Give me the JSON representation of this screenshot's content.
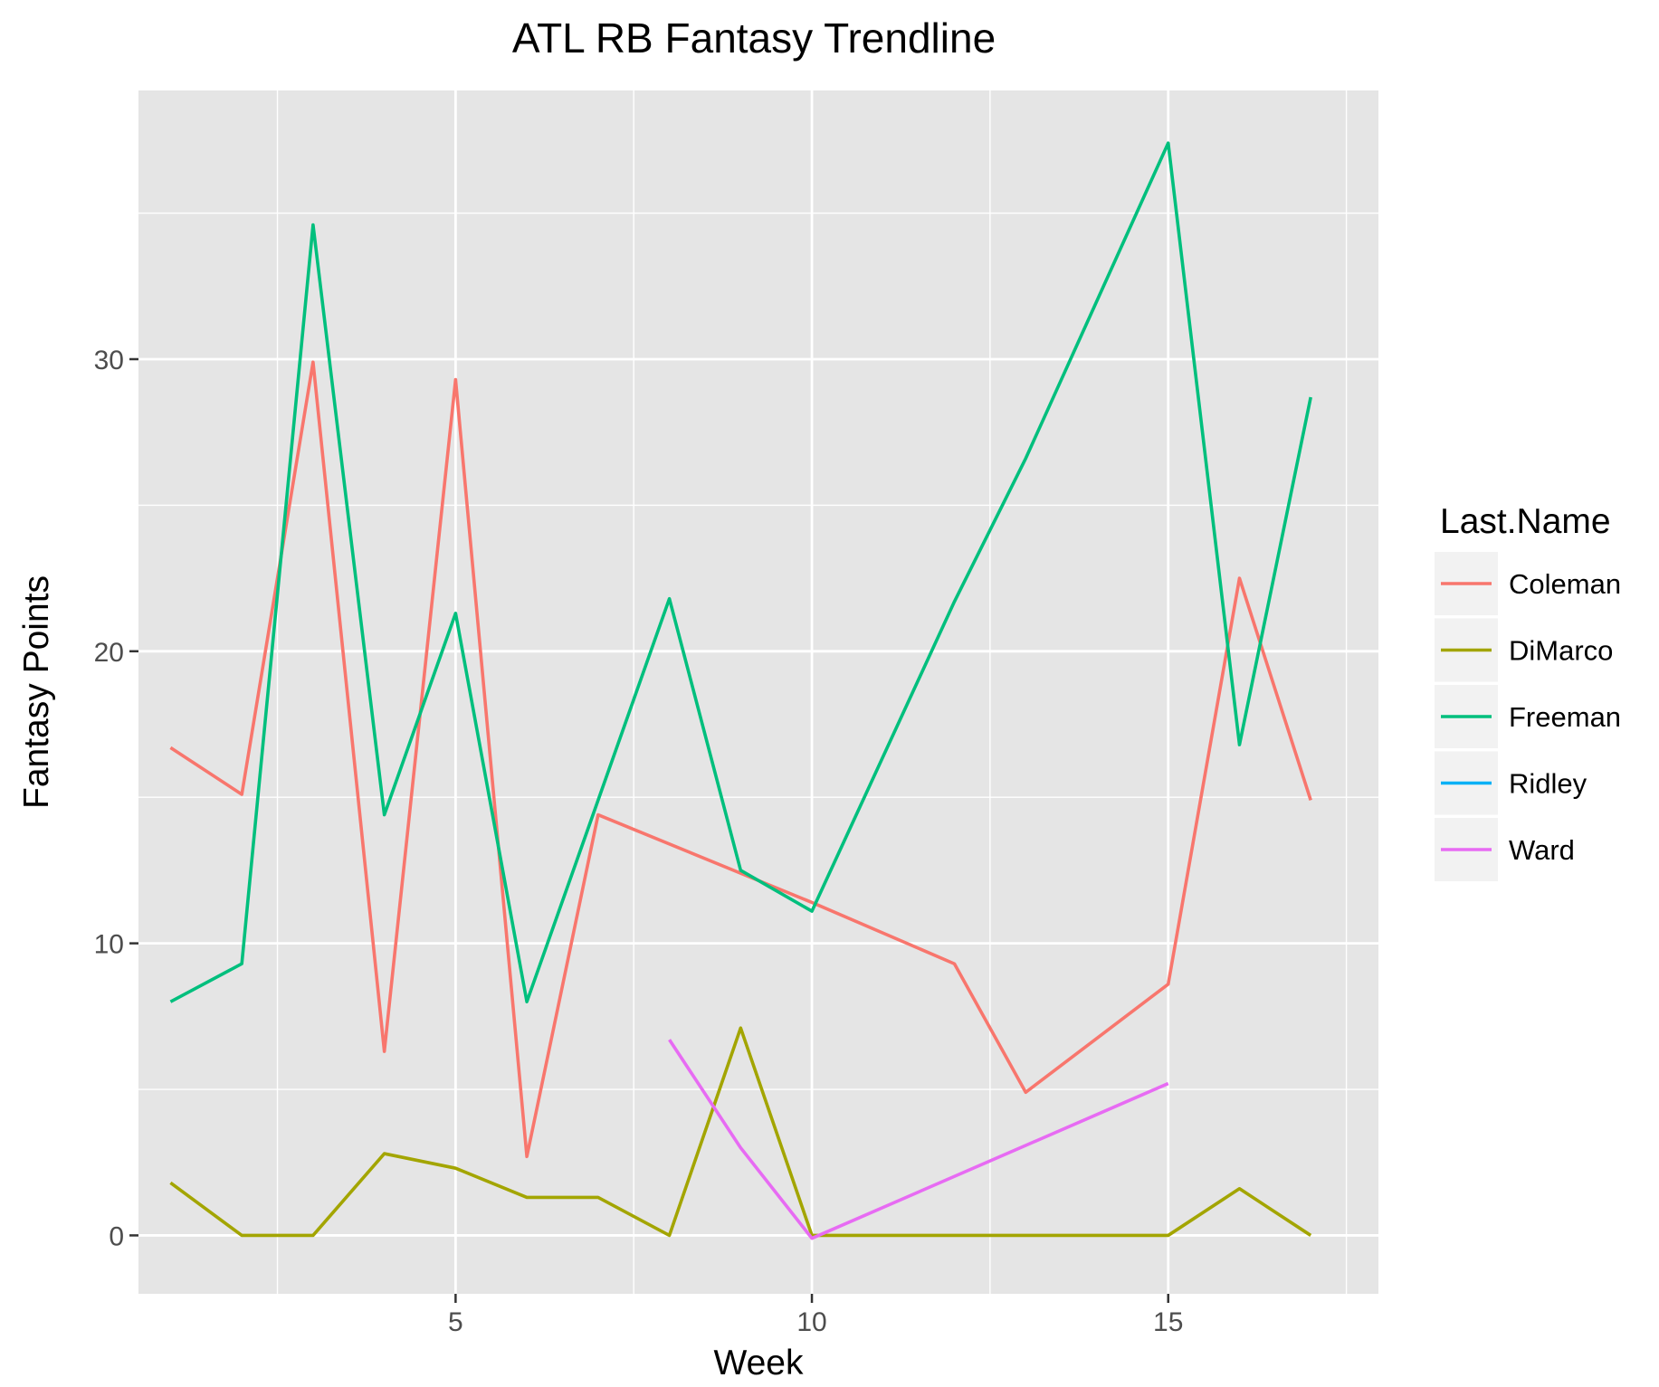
{
  "chart_data": {
    "type": "line",
    "title": "ATL RB Fantasy Trendline",
    "xlabel": "Week",
    "ylabel": "Fantasy Points",
    "xlim": [
      0.55,
      17.95
    ],
    "ylim": [
      -2.0,
      39.2
    ],
    "x_ticks": [
      5,
      10,
      15
    ],
    "x_minor_ticks": [
      2.5,
      7.5,
      12.5,
      17.5
    ],
    "y_ticks": [
      0,
      10,
      20,
      30
    ],
    "y_minor_ticks": [
      5,
      15,
      25,
      35
    ],
    "grid": true,
    "panel_background": "#e5e5e5",
    "legend": {
      "title": "Last.Name",
      "position": "right"
    },
    "series": [
      {
        "name": "Coleman",
        "color": "#f8766d",
        "points": [
          [
            1,
            16.7
          ],
          [
            2,
            15.1
          ],
          [
            3,
            29.9
          ],
          [
            4,
            6.3
          ],
          [
            5,
            29.3
          ],
          [
            6,
            2.7
          ],
          [
            7,
            14.4
          ],
          [
            10,
            11.4
          ],
          [
            12,
            9.3
          ],
          [
            13,
            4.9
          ],
          [
            15,
            8.6
          ],
          [
            16,
            22.5
          ],
          [
            17,
            14.9
          ]
        ]
      },
      {
        "name": "DiMarco",
        "color": "#a3a500",
        "points": [
          [
            1,
            1.8
          ],
          [
            2,
            0
          ],
          [
            3,
            0
          ],
          [
            4,
            2.8
          ],
          [
            5,
            2.3
          ],
          [
            6,
            1.3
          ],
          [
            7,
            1.3
          ],
          [
            8,
            0
          ],
          [
            9,
            7.1
          ],
          [
            10,
            0
          ],
          [
            12,
            0
          ],
          [
            13,
            0
          ],
          [
            15,
            0
          ],
          [
            16,
            1.6
          ],
          [
            17,
            0
          ]
        ]
      },
      {
        "name": "Freeman",
        "color": "#00bf7d",
        "points": [
          [
            1,
            8.0
          ],
          [
            2,
            9.3
          ],
          [
            3,
            34.6
          ],
          [
            4,
            14.4
          ],
          [
            5,
            21.3
          ],
          [
            6,
            8.0
          ],
          [
            8,
            21.8
          ],
          [
            9,
            12.5
          ],
          [
            10,
            11.1
          ],
          [
            12,
            21.7
          ],
          [
            13,
            26.6
          ],
          [
            15,
            37.4
          ],
          [
            16,
            16.8
          ],
          [
            17,
            28.7
          ]
        ]
      },
      {
        "name": "Ridley",
        "color": "#00b0f6",
        "points": []
      },
      {
        "name": "Ward",
        "color": "#e76bf3",
        "points": [
          [
            8,
            6.7
          ],
          [
            9,
            3.0
          ],
          [
            10,
            -0.1
          ],
          [
            15,
            5.2
          ]
        ]
      }
    ]
  }
}
